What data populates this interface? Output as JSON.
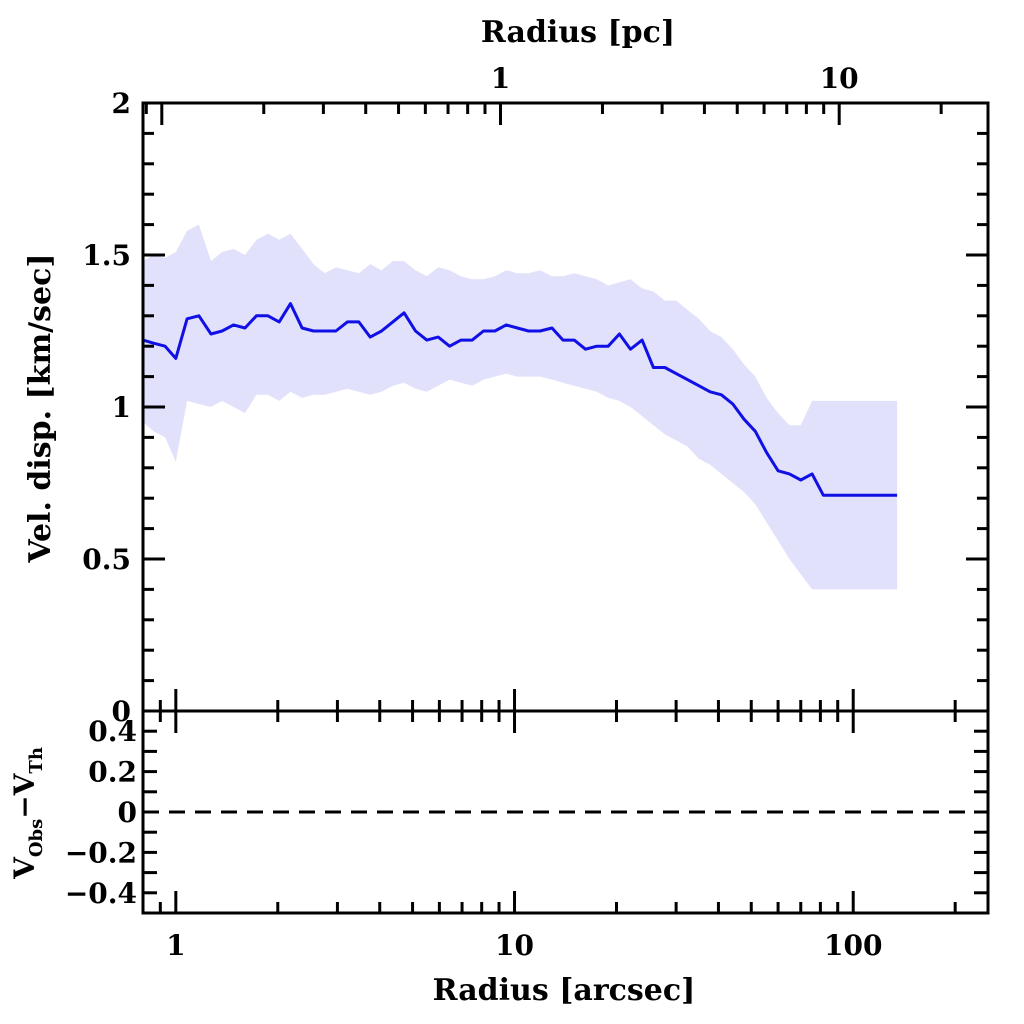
{
  "chart_data": {
    "type": "line",
    "x_scale": "log",
    "top_axis": {
      "title": "Radius [pc]",
      "tick_labels": [
        {
          "text": "1",
          "value_pc": 1
        },
        {
          "text": "10",
          "value_pc": 10
        }
      ]
    },
    "bottom_axis": {
      "title": "Radius [arcsec]",
      "xlim": [
        0.8,
        250
      ],
      "tick_labels": [
        {
          "text": "1",
          "value": 1
        },
        {
          "text": "10",
          "value": 10
        },
        {
          "text": "100",
          "value": 100
        }
      ]
    },
    "main_panel": {
      "ylabel": "Vel. disp. [km/sec]",
      "ylim": [
        0,
        2
      ],
      "tick_labels": [
        {
          "text": "0",
          "value": 0
        },
        {
          "text": "0.5",
          "value": 0.5
        },
        {
          "text": "1",
          "value": 1
        },
        {
          "text": "1.5",
          "value": 1.5
        },
        {
          "text": "2",
          "value": 2
        }
      ],
      "line_color": "#1010e6",
      "band_color": "#e1e1fb",
      "x": [
        0.8,
        0.86,
        0.93,
        1.0,
        1.08,
        1.17,
        1.27,
        1.37,
        1.48,
        1.6,
        1.73,
        1.87,
        2.02,
        2.18,
        2.36,
        2.55,
        2.75,
        2.97,
        3.21,
        3.47,
        3.75,
        4.05,
        4.37,
        4.72,
        5.1,
        5.51,
        5.95,
        6.43,
        6.95,
        7.5,
        8.1,
        8.75,
        9.45,
        10.2,
        11.0,
        11.9,
        12.9,
        13.9,
        15.0,
        16.2,
        17.5,
        18.9,
        20.4,
        22.0,
        23.8,
        25.7,
        27.8,
        30.0,
        32.4,
        35.0,
        37.8,
        40.8,
        44.1,
        47.6,
        51.4,
        55.5,
        60.0,
        64.8,
        70.0,
        75.6,
        81.6,
        88.1,
        95.2,
        102.8,
        111.0,
        119.9,
        129.5,
        134.8
      ],
      "y": [
        1.22,
        1.21,
        1.2,
        1.16,
        1.29,
        1.3,
        1.24,
        1.25,
        1.27,
        1.26,
        1.3,
        1.3,
        1.28,
        1.34,
        1.26,
        1.25,
        1.25,
        1.25,
        1.28,
        1.28,
        1.23,
        1.25,
        1.28,
        1.31,
        1.25,
        1.22,
        1.23,
        1.2,
        1.22,
        1.22,
        1.25,
        1.25,
        1.27,
        1.26,
        1.25,
        1.25,
        1.26,
        1.22,
        1.22,
        1.19,
        1.2,
        1.2,
        1.24,
        1.19,
        1.22,
        1.13,
        1.13,
        1.11,
        1.09,
        1.07,
        1.05,
        1.04,
        1.01,
        0.96,
        0.92,
        0.85,
        0.79,
        0.78,
        0.76,
        0.78,
        0.71,
        0.71,
        0.71,
        0.71,
        0.71,
        0.71,
        0.71,
        0.71
      ],
      "y_upper": [
        1.48,
        1.5,
        1.49,
        1.51,
        1.58,
        1.6,
        1.48,
        1.51,
        1.52,
        1.5,
        1.55,
        1.57,
        1.55,
        1.57,
        1.52,
        1.47,
        1.44,
        1.46,
        1.45,
        1.44,
        1.47,
        1.45,
        1.48,
        1.48,
        1.45,
        1.43,
        1.46,
        1.45,
        1.43,
        1.42,
        1.42,
        1.43,
        1.45,
        1.44,
        1.44,
        1.45,
        1.43,
        1.43,
        1.44,
        1.43,
        1.42,
        1.4,
        1.41,
        1.42,
        1.39,
        1.38,
        1.35,
        1.35,
        1.32,
        1.29,
        1.25,
        1.23,
        1.19,
        1.14,
        1.1,
        1.03,
        0.98,
        0.94,
        0.94,
        1.02,
        1.02,
        1.02,
        1.02,
        1.02,
        1.02,
        1.02,
        1.02,
        1.02
      ],
      "y_lower": [
        0.95,
        0.92,
        0.9,
        0.82,
        1.02,
        1.01,
        1.0,
        1.02,
        1.0,
        0.98,
        1.04,
        1.04,
        1.02,
        1.05,
        1.03,
        1.04,
        1.04,
        1.05,
        1.06,
        1.05,
        1.04,
        1.05,
        1.07,
        1.08,
        1.06,
        1.05,
        1.07,
        1.09,
        1.08,
        1.07,
        1.09,
        1.1,
        1.11,
        1.1,
        1.1,
        1.1,
        1.09,
        1.08,
        1.07,
        1.06,
        1.05,
        1.03,
        1.02,
        1.0,
        0.97,
        0.94,
        0.91,
        0.89,
        0.87,
        0.83,
        0.81,
        0.78,
        0.75,
        0.72,
        0.68,
        0.62,
        0.56,
        0.5,
        0.45,
        0.4,
        0.4,
        0.4,
        0.4,
        0.4,
        0.4,
        0.4,
        0.4,
        0.4
      ]
    },
    "residual_panel": {
      "ylabel": "V_Obs−V_Th",
      "ylabel_main": "V",
      "ylabel_sub1": "Obs",
      "ylabel_minus": "−",
      "ylabel_sub2": "Th",
      "ylim": [
        -0.5,
        0.5
      ],
      "tick_labels": [
        {
          "text": "0.4",
          "value": 0.4
        },
        {
          "text": "0.2",
          "value": 0.2
        },
        {
          "text": "0",
          "value": 0
        },
        {
          "text": "−0.2",
          "value": -0.2
        },
        {
          "text": "−0.4",
          "value": -0.4
        }
      ],
      "reference_line": {
        "y": 0,
        "style": "dashed"
      }
    }
  }
}
